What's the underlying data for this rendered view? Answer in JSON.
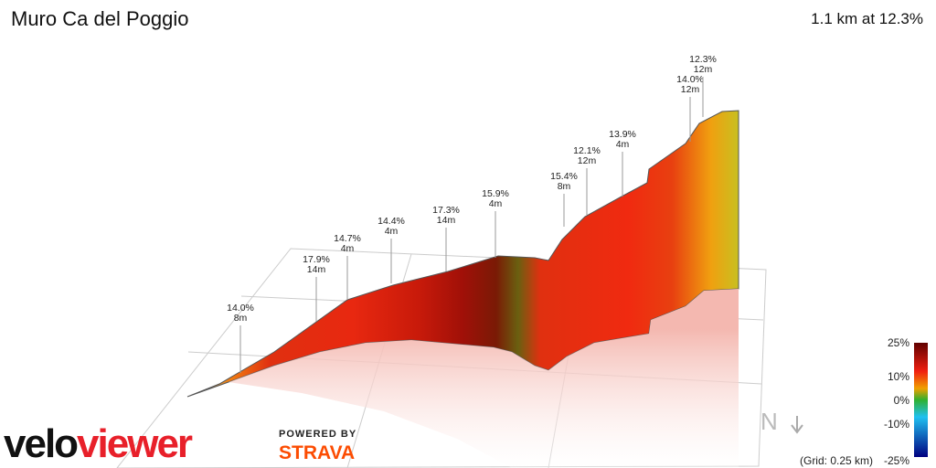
{
  "title": "Muro Ca del Poggio",
  "summary": "1.1 km at 12.3%",
  "annotations": [
    {
      "gradient": "14.0%",
      "length": "8m"
    },
    {
      "gradient": "17.9%",
      "length": "14m"
    },
    {
      "gradient": "14.7%",
      "length": "4m"
    },
    {
      "gradient": "14.4%",
      "length": "4m"
    },
    {
      "gradient": "17.3%",
      "length": "14m"
    },
    {
      "gradient": "15.9%",
      "length": "4m"
    },
    {
      "gradient": "15.4%",
      "length": "8m"
    },
    {
      "gradient": "12.1%",
      "length": "12m"
    },
    {
      "gradient": "13.9%",
      "length": "4m"
    },
    {
      "gradient": "14.0%",
      "length": "12m"
    },
    {
      "gradient": "12.3%",
      "length": "12m"
    }
  ],
  "legend": {
    "ticks": [
      "25%",
      "10%",
      "0%",
      "-10%",
      "-25%"
    ],
    "grid_note": "(Grid: 0.25 km)"
  },
  "branding": {
    "logo_prefix": "velo",
    "logo_suffix": "viewer",
    "powered": "POWERED BY",
    "strava": "STRAVA"
  },
  "compass": "N"
}
